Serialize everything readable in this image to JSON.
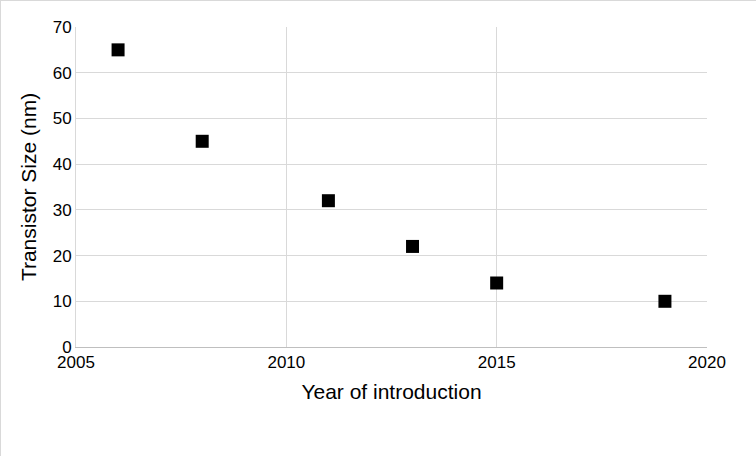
{
  "chart_data": {
    "type": "scatter",
    "x_label": "Year of introduction",
    "y_label": "Transistor Size (nm)",
    "x": [
      2006,
      2008,
      2011,
      2013,
      2015,
      2019
    ],
    "values": [
      65,
      45,
      32,
      22,
      14,
      10
    ],
    "color": "#000000",
    "marker": "square",
    "xlim": [
      2005,
      2020
    ],
    "xticks": [
      2005,
      2010,
      2015,
      2020
    ],
    "ylim": [
      0,
      70
    ],
    "yticks": [
      0,
      10,
      20,
      30,
      40,
      50,
      60,
      70
    ],
    "grid": true
  }
}
